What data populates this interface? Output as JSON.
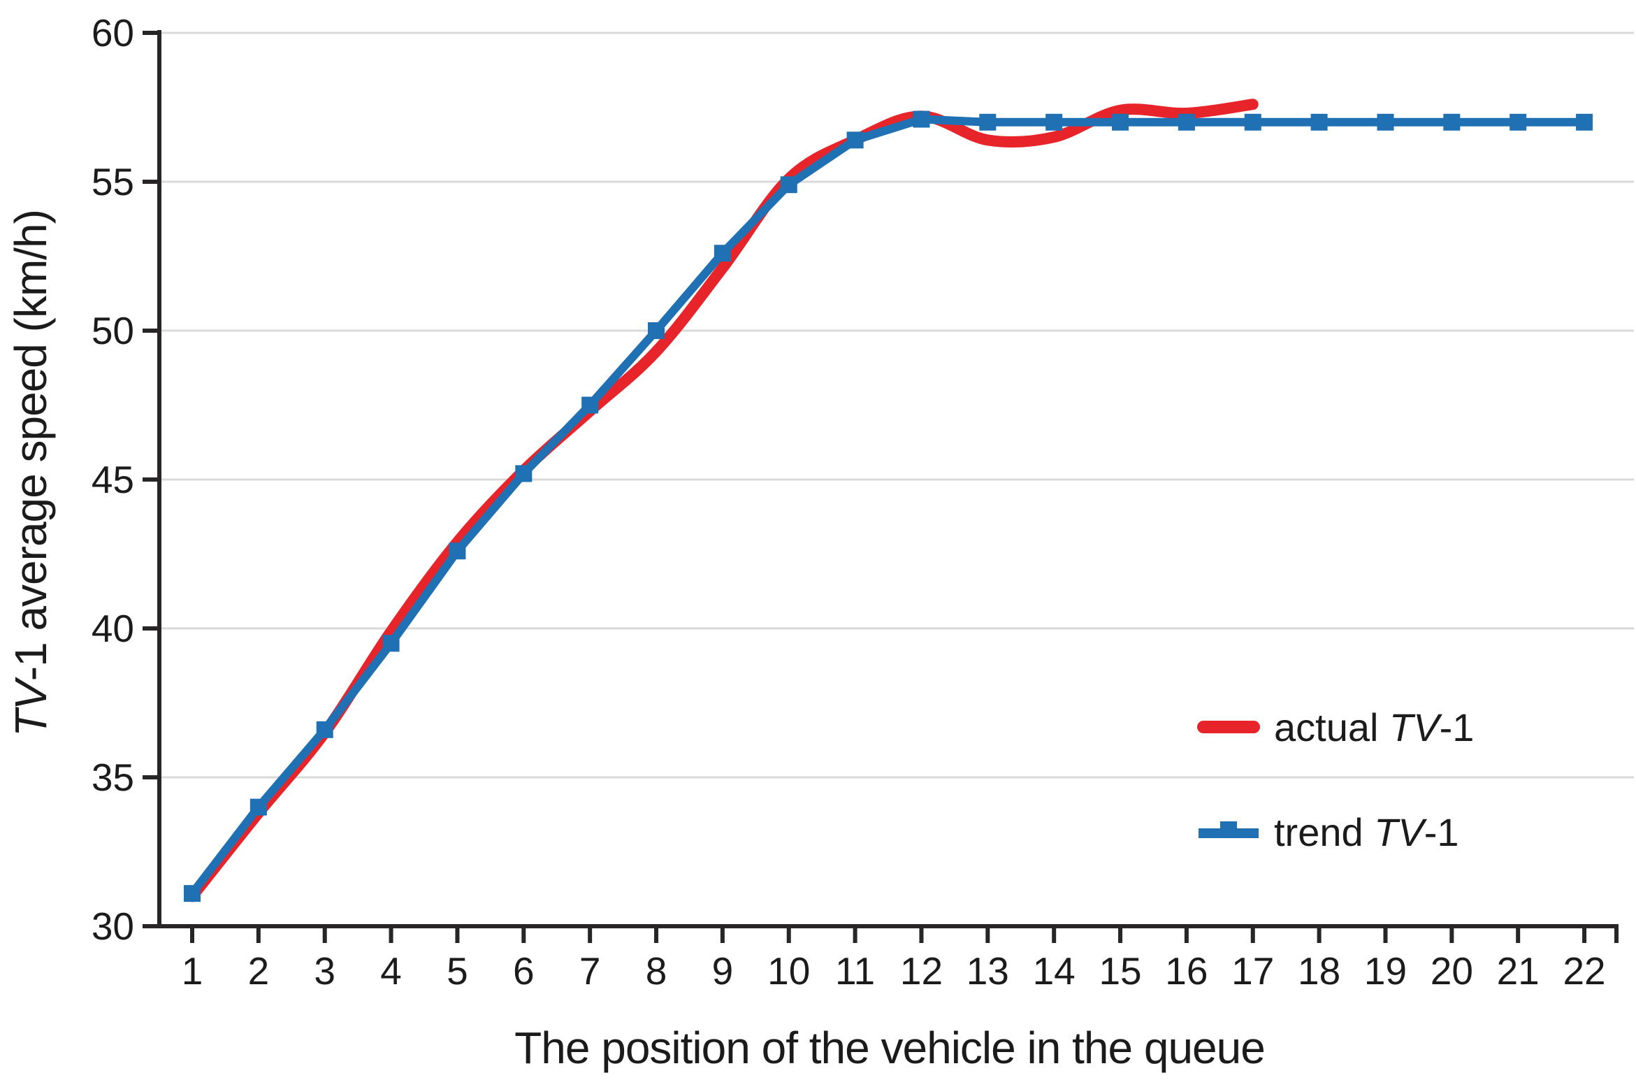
{
  "chart_data": {
    "type": "line",
    "title": "",
    "xlabel": "The position of the vehicle in the queue",
    "ylabel_italic": "TV",
    "ylabel_rest": "-1 average speed (km/h)",
    "xlim": [
      1,
      22
    ],
    "ylim": [
      30,
      60
    ],
    "x_ticks": [
      1,
      2,
      3,
      4,
      5,
      6,
      7,
      8,
      9,
      10,
      11,
      12,
      13,
      14,
      15,
      16,
      17,
      18,
      19,
      20,
      21,
      22
    ],
    "y_ticks": [
      30,
      35,
      40,
      45,
      50,
      55,
      60
    ],
    "grid": "horizontal-only",
    "legend_position": "inside-lower-right",
    "series": [
      {
        "name": "actual TV-1",
        "color": "#e72429",
        "style": "smooth-thick-line",
        "x": [
          1,
          2,
          3,
          4,
          5,
          6,
          7,
          8,
          9,
          10,
          11,
          12,
          13,
          14,
          15,
          16,
          17
        ],
        "values": [
          31.0,
          33.8,
          36.5,
          39.9,
          42.9,
          45.3,
          47.3,
          49.3,
          52.1,
          55.1,
          56.4,
          57.2,
          56.4,
          56.5,
          57.4,
          57.3,
          57.6
        ]
      },
      {
        "name": "trend TV-1",
        "color": "#2070b4",
        "style": "line-with-square-markers",
        "x": [
          1,
          2,
          3,
          4,
          5,
          6,
          7,
          8,
          9,
          10,
          11,
          12,
          13,
          14,
          15,
          16,
          17,
          18,
          19,
          20,
          21,
          22
        ],
        "values": [
          31.1,
          34.0,
          36.6,
          39.5,
          42.6,
          45.2,
          47.5,
          50.0,
          52.6,
          54.9,
          56.4,
          57.1,
          57.0,
          57.0,
          57.0,
          57.0,
          57.0,
          57.0,
          57.0,
          57.0,
          57.0,
          57.0
        ]
      }
    ],
    "colors": {
      "grid": "#d9d9d9",
      "axis": "#272525",
      "text": "#1b1b1b"
    }
  },
  "legend": {
    "items": [
      {
        "prefix": "actual ",
        "italic": "TV",
        "suffix": "-1",
        "swatch": "red-line"
      },
      {
        "prefix": "trend ",
        "italic": "TV",
        "suffix": "-1",
        "swatch": "blue-line-with-marker"
      }
    ]
  },
  "x_axis": {
    "title": "The position of the vehicle in the queue"
  },
  "y_axis": {
    "title_italic": "TV",
    "title_rest": "-1 average speed (km/h)"
  }
}
